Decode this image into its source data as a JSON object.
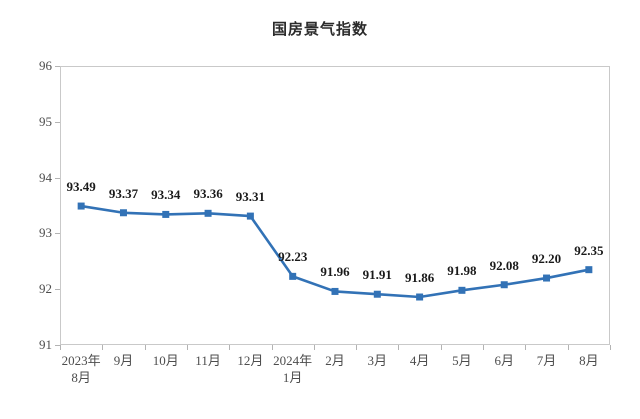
{
  "chart_data": {
    "type": "line",
    "title": "国房景气指数",
    "categories": [
      "2023年\n8月",
      "9月",
      "10月",
      "11月",
      "12月",
      "2024年\n1月",
      "2月",
      "3月",
      "4月",
      "5月",
      "6月",
      "7月",
      "8月"
    ],
    "values": [
      93.49,
      93.37,
      93.34,
      93.36,
      93.31,
      92.23,
      91.96,
      91.91,
      91.86,
      91.98,
      92.08,
      92.2,
      92.35
    ],
    "data_labels": [
      "93.49",
      "93.37",
      "93.34",
      "93.36",
      "93.31",
      "92.23",
      "91.96",
      "91.91",
      "91.86",
      "91.98",
      "92.08",
      "92.20",
      "92.35"
    ],
    "xlabel": "",
    "ylabel": "",
    "ylim": [
      91,
      96
    ],
    "y_ticks": [
      96,
      95,
      94,
      93,
      92,
      91
    ],
    "grid": false,
    "legend_position": "none",
    "line_color": "#3272B6",
    "marker": "square",
    "marker_color": "#3272B6"
  }
}
